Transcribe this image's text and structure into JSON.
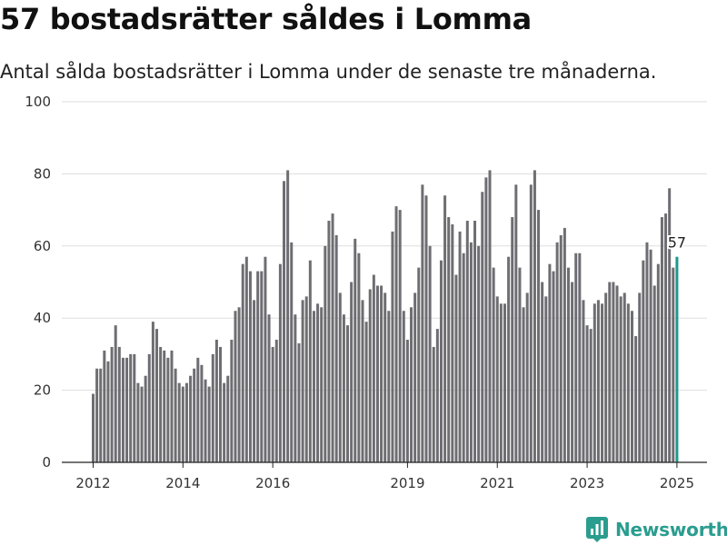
{
  "header": {
    "title": "57 bostadsrätter såldes i Lomma",
    "subtitle": "Antal sålda bostadsrätter i Lomma under de senaste tre månaderna."
  },
  "brand": {
    "name": "Newsworthy",
    "icon": "newsworthy-logo-icon",
    "color": "#2a9d8f"
  },
  "colors": {
    "bar": "#6e6d72",
    "highlight": "#1a9a8c",
    "grid": "#dddddd",
    "axis": "#222222"
  },
  "chart_data": {
    "type": "bar",
    "x_start": "2012-01",
    "x_step": "1 month",
    "values": [
      19,
      26,
      26,
      31,
      28,
      32,
      38,
      32,
      29,
      29,
      30,
      30,
      22,
      21,
      24,
      30,
      39,
      37,
      32,
      31,
      29,
      31,
      26,
      22,
      21,
      22,
      24,
      26,
      29,
      27,
      23,
      21,
      30,
      34,
      32,
      22,
      24,
      34,
      42,
      43,
      55,
      57,
      53,
      45,
      53,
      53,
      57,
      41,
      32,
      34,
      55,
      78,
      81,
      61,
      41,
      33,
      45,
      46,
      56,
      42,
      44,
      43,
      60,
      67,
      69,
      63,
      47,
      41,
      38,
      50,
      62,
      58,
      45,
      39,
      48,
      52,
      49,
      49,
      47,
      42,
      64,
      71,
      70,
      42,
      34,
      43,
      47,
      54,
      77,
      74,
      60,
      32,
      37,
      56,
      74,
      68,
      66,
      52,
      64,
      58,
      67,
      61,
      67,
      60,
      75,
      79,
      81,
      54,
      46,
      44,
      44,
      57,
      68,
      77,
      54,
      43,
      47,
      77,
      81,
      70,
      50,
      46,
      55,
      53,
      61,
      63,
      65,
      54,
      50,
      58,
      58,
      45,
      38,
      37,
      44,
      45,
      44,
      47,
      50,
      50,
      49,
      46,
      47,
      44,
      42,
      35,
      47,
      56,
      61,
      59,
      49,
      55,
      68,
      69,
      76,
      54,
      57
    ],
    "highlight_last": true,
    "data_label": "57",
    "y_ticks": [
      "0",
      "20",
      "40",
      "60",
      "80",
      "100"
    ],
    "ylim": [
      0,
      100
    ],
    "x_ticks": [
      "2012",
      "2014",
      "2016",
      "2019",
      "2021",
      "2023",
      "2025"
    ],
    "x_tick_months": [
      0,
      24,
      48,
      84,
      108,
      132,
      156
    ],
    "grid": true,
    "xlabel": "",
    "ylabel": ""
  }
}
